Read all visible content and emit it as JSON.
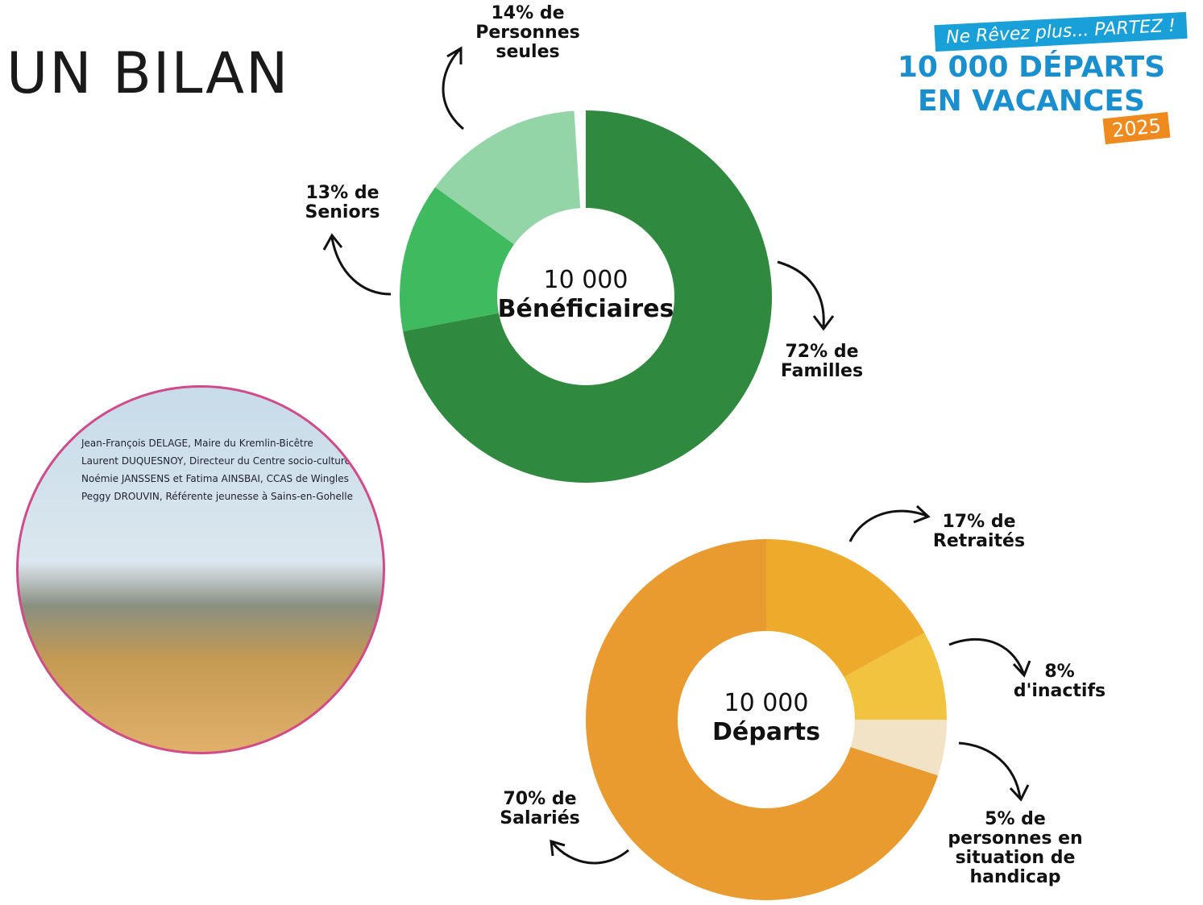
{
  "title": "UN BILAN",
  "poster": {
    "tagline": "Ne Rêvez plus... PARTEZ !",
    "headline_1": "10 000 DÉPARTS",
    "headline_2": "EN VACANCES",
    "year": "2025"
  },
  "photo": {
    "lines": [
      "Jean-François DELAGE, Maire du Kremlin-Bicêtre",
      "Laurent DUQUESNOY, Directeur du Centre socio-culturel",
      "Noémie JANSSENS et Fatima AINSBAI, CCAS de Wingles",
      "Peggy DROUVIN, Référente jeunesse à Sains-en-Gohelle"
    ]
  },
  "chart_data": [
    {
      "type": "pie",
      "center_label": [
        "10 000",
        "Bénéficiaires"
      ],
      "categories": [
        "Familles",
        "Seniors",
        "Personnes seules"
      ],
      "values": [
        72,
        13,
        14
      ],
      "value_labels": [
        "72% de",
        "13% de",
        "14% de"
      ],
      "colors": [
        "#2f8a3f",
        "#3fba5e",
        "#93d5a6"
      ]
    },
    {
      "type": "pie",
      "center_label": [
        "10 000",
        "Départs"
      ],
      "categories": [
        "Retraités",
        "d'inactifs",
        "personnes en situation de handicap",
        "Salariés"
      ],
      "values": [
        17,
        8,
        5,
        70
      ],
      "value_labels": [
        "17% de",
        "8%",
        "5% de",
        "70% de"
      ],
      "colors": [
        "#eeaa2b",
        "#f1c33f",
        "#f3e3c6",
        "#ea9b2f"
      ]
    }
  ]
}
